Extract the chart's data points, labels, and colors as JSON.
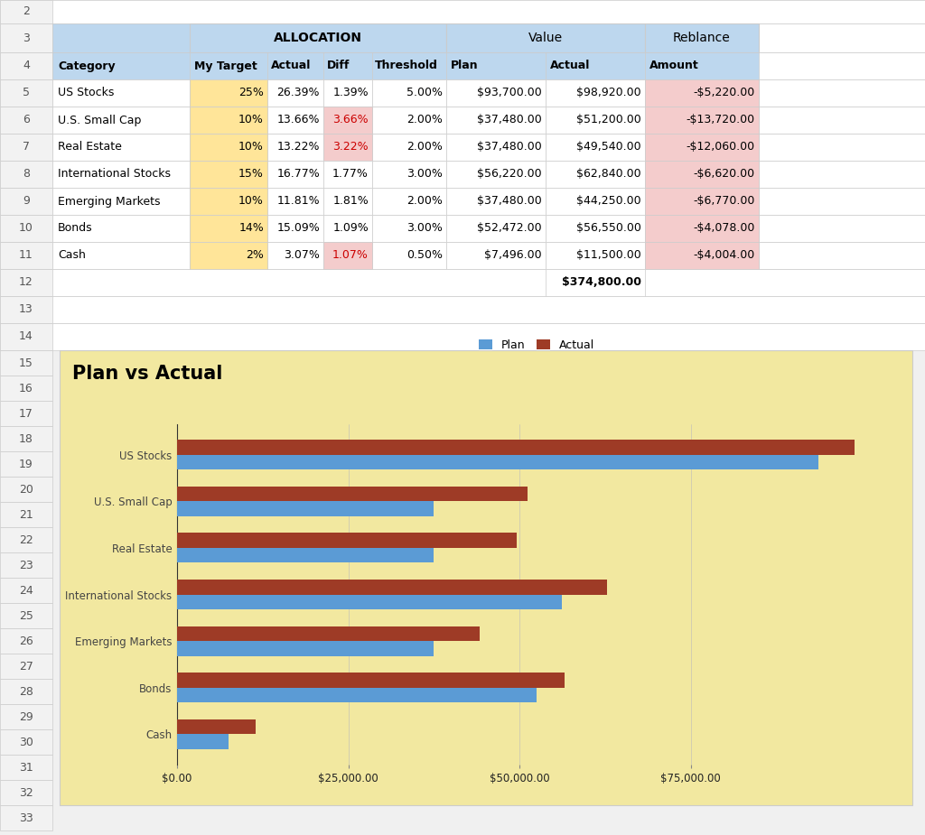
{
  "rows": [
    {
      "row": 5,
      "category": "US Stocks",
      "my_target": "25%",
      "actual_pct": "26.39%",
      "diff": "1.39%",
      "diff_red": false,
      "threshold": "5.00%",
      "plan": "$93,700.00",
      "actual_val": "$98,920.00",
      "rebalance": "-$5,220.00",
      "plan_num": 93700,
      "actual_num": 98920
    },
    {
      "row": 6,
      "category": "U.S. Small Cap",
      "my_target": "10%",
      "actual_pct": "13.66%",
      "diff": "3.66%",
      "diff_red": true,
      "threshold": "2.00%",
      "plan": "$37,480.00",
      "actual_val": "$51,200.00",
      "rebalance": "-$13,720.00",
      "plan_num": 37480,
      "actual_num": 51200
    },
    {
      "row": 7,
      "category": "Real Estate",
      "my_target": "10%",
      "actual_pct": "13.22%",
      "diff": "3.22%",
      "diff_red": true,
      "threshold": "2.00%",
      "plan": "$37,480.00",
      "actual_val": "$49,540.00",
      "rebalance": "-$12,060.00",
      "plan_num": 37480,
      "actual_num": 49540
    },
    {
      "row": 8,
      "category": "International Stocks",
      "my_target": "15%",
      "actual_pct": "16.77%",
      "diff": "1.77%",
      "diff_red": false,
      "threshold": "3.00%",
      "plan": "$56,220.00",
      "actual_val": "$62,840.00",
      "rebalance": "-$6,620.00",
      "plan_num": 56220,
      "actual_num": 62840
    },
    {
      "row": 9,
      "category": "Emerging Markets",
      "my_target": "10%",
      "actual_pct": "11.81%",
      "diff": "1.81%",
      "diff_red": false,
      "threshold": "2.00%",
      "plan": "$37,480.00",
      "actual_val": "$44,250.00",
      "rebalance": "-$6,770.00",
      "plan_num": 37480,
      "actual_num": 44250
    },
    {
      "row": 10,
      "category": "Bonds",
      "my_target": "14%",
      "actual_pct": "15.09%",
      "diff": "1.09%",
      "diff_red": false,
      "threshold": "3.00%",
      "plan": "$52,472.00",
      "actual_val": "$56,550.00",
      "rebalance": "-$4,078.00",
      "plan_num": 52472,
      "actual_num": 56550
    },
    {
      "row": 11,
      "category": "Cash",
      "my_target": "2%",
      "actual_pct": "3.07%",
      "diff": "1.07%",
      "diff_red": true,
      "threshold": "0.50%",
      "plan": "$7,496.00",
      "actual_val": "$11,500.00",
      "rebalance": "-$4,004.00",
      "plan_num": 7496,
      "actual_num": 11500
    }
  ],
  "total_actual": "$374,800.00",
  "header_bg": "#BDD7EE",
  "target_col_bg": "#FFE599",
  "diff_red_bg": "#F4CCCC",
  "rebalance_bg": "#F4CCCC",
  "outer_bg": "#F0F0F0",
  "white": "#FFFFFF",
  "chart_bg": "#F2E8A0",
  "chart_title": "Plan vs Actual",
  "plan_color": "#5B9BD5",
  "actual_color": "#9E3B26",
  "x_ticks": [
    0,
    25000,
    50000,
    75000
  ],
  "x_tick_labels": [
    "$0.00",
    "$25,000.00",
    "$50,000.00",
    "$75,000.00"
  ],
  "rownum_bg": "#F2F2F2",
  "grid_line": "#CCCCCC",
  "row_numbers": [
    2,
    3,
    4,
    5,
    6,
    7,
    8,
    9,
    10,
    11,
    12,
    13,
    14,
    15,
    16,
    17,
    18,
    19,
    20,
    21,
    22,
    23,
    24,
    25,
    26,
    27,
    28,
    29,
    30,
    31,
    32,
    33
  ]
}
